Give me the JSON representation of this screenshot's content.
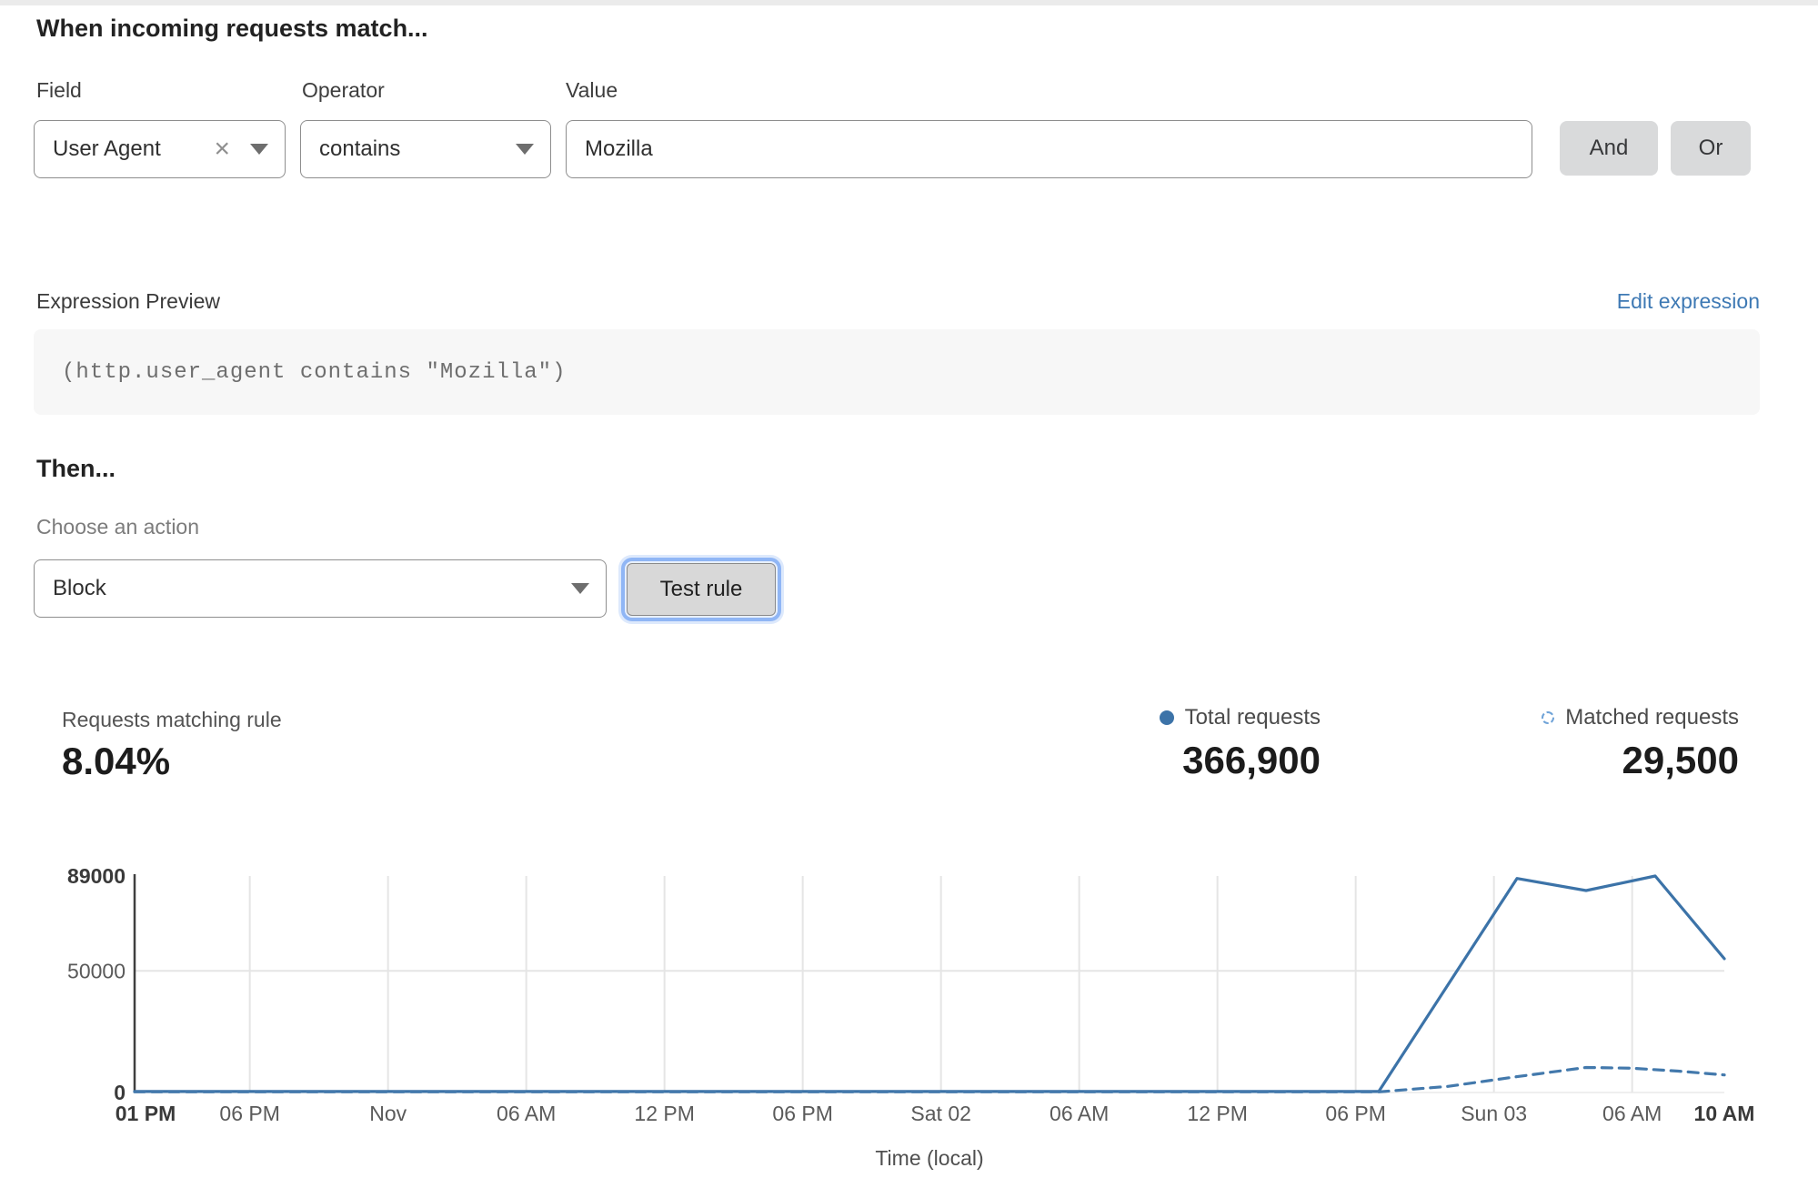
{
  "colors": {
    "line_blue": "#3C73A8",
    "dashed_blue": "#4379AC",
    "link_blue": "#3E79B4",
    "focus_ring_blue": "#90B6F5",
    "button_gray": "#D9DADB",
    "code_box_gray": "#F7F7F7"
  },
  "rule_builder": {
    "heading": "When incoming requests match...",
    "field": {
      "label": "Field",
      "value": "User Agent"
    },
    "operator": {
      "label": "Operator",
      "value": "contains"
    },
    "value": {
      "label": "Value",
      "value": "Mozilla"
    },
    "and_label": "And",
    "or_label": "Or"
  },
  "expression": {
    "label": "Expression Preview",
    "edit_link": "Edit expression",
    "code": "(http.user_agent contains \"Mozilla\")"
  },
  "action": {
    "heading": "Then...",
    "choose_label": "Choose an action",
    "value": "Block",
    "test_button": "Test rule"
  },
  "stats": {
    "match_label": "Requests matching rule",
    "match_value": "8.04%",
    "total_label": "Total requests",
    "total_value": "366,900",
    "matched_label": "Matched requests",
    "matched_value": "29,500"
  },
  "chart_data": {
    "type": "line",
    "title": "",
    "xlabel": "Time (local)",
    "ylabel": "",
    "ylim": [
      0,
      89000
    ],
    "x_range_hours": [
      0,
      69
    ],
    "x_origin": "Thu Oct 31 01 PM (local)",
    "grid": true,
    "legend_position": "top-right, above chart, with totals",
    "yticks": [
      {
        "value": 0,
        "label": "0",
        "bold": true
      },
      {
        "value": 50000,
        "label": "50000",
        "bold": false
      },
      {
        "value": 89000,
        "label": "89000",
        "bold": true
      }
    ],
    "xticks": [
      {
        "h": 0,
        "label": "01 PM",
        "bold": true
      },
      {
        "h": 5,
        "label": "06 PM",
        "bold": false
      },
      {
        "h": 11,
        "label": "Nov",
        "bold": false
      },
      {
        "h": 17,
        "label": "06 AM",
        "bold": false
      },
      {
        "h": 23,
        "label": "12 PM",
        "bold": false
      },
      {
        "h": 29,
        "label": "06 PM",
        "bold": false
      },
      {
        "h": 35,
        "label": "Sat 02",
        "bold": false
      },
      {
        "h": 41,
        "label": "06 AM",
        "bold": false
      },
      {
        "h": 47,
        "label": "12 PM",
        "bold": false
      },
      {
        "h": 53,
        "label": "06 PM",
        "bold": false
      },
      {
        "h": 59,
        "label": "Sun 03",
        "bold": false
      },
      {
        "h": 65,
        "label": "06 AM",
        "bold": false
      },
      {
        "h": 69,
        "label": "10 AM",
        "bold": true
      }
    ],
    "series": [
      {
        "name": "Total requests",
        "style": "solid",
        "color": "#3C73A8",
        "points": [
          [
            0,
            400
          ],
          [
            54,
            400
          ],
          [
            60,
            88000
          ],
          [
            63,
            83000
          ],
          [
            66,
            89000
          ],
          [
            69,
            55000
          ]
        ]
      },
      {
        "name": "Matched requests",
        "style": "dashed",
        "color": "#4379AC",
        "points": [
          [
            0,
            250
          ],
          [
            54,
            250
          ],
          [
            57,
            2500
          ],
          [
            60,
            6500
          ],
          [
            63,
            10300
          ],
          [
            65,
            10000
          ],
          [
            67,
            8800
          ],
          [
            69,
            7200
          ]
        ]
      }
    ]
  }
}
